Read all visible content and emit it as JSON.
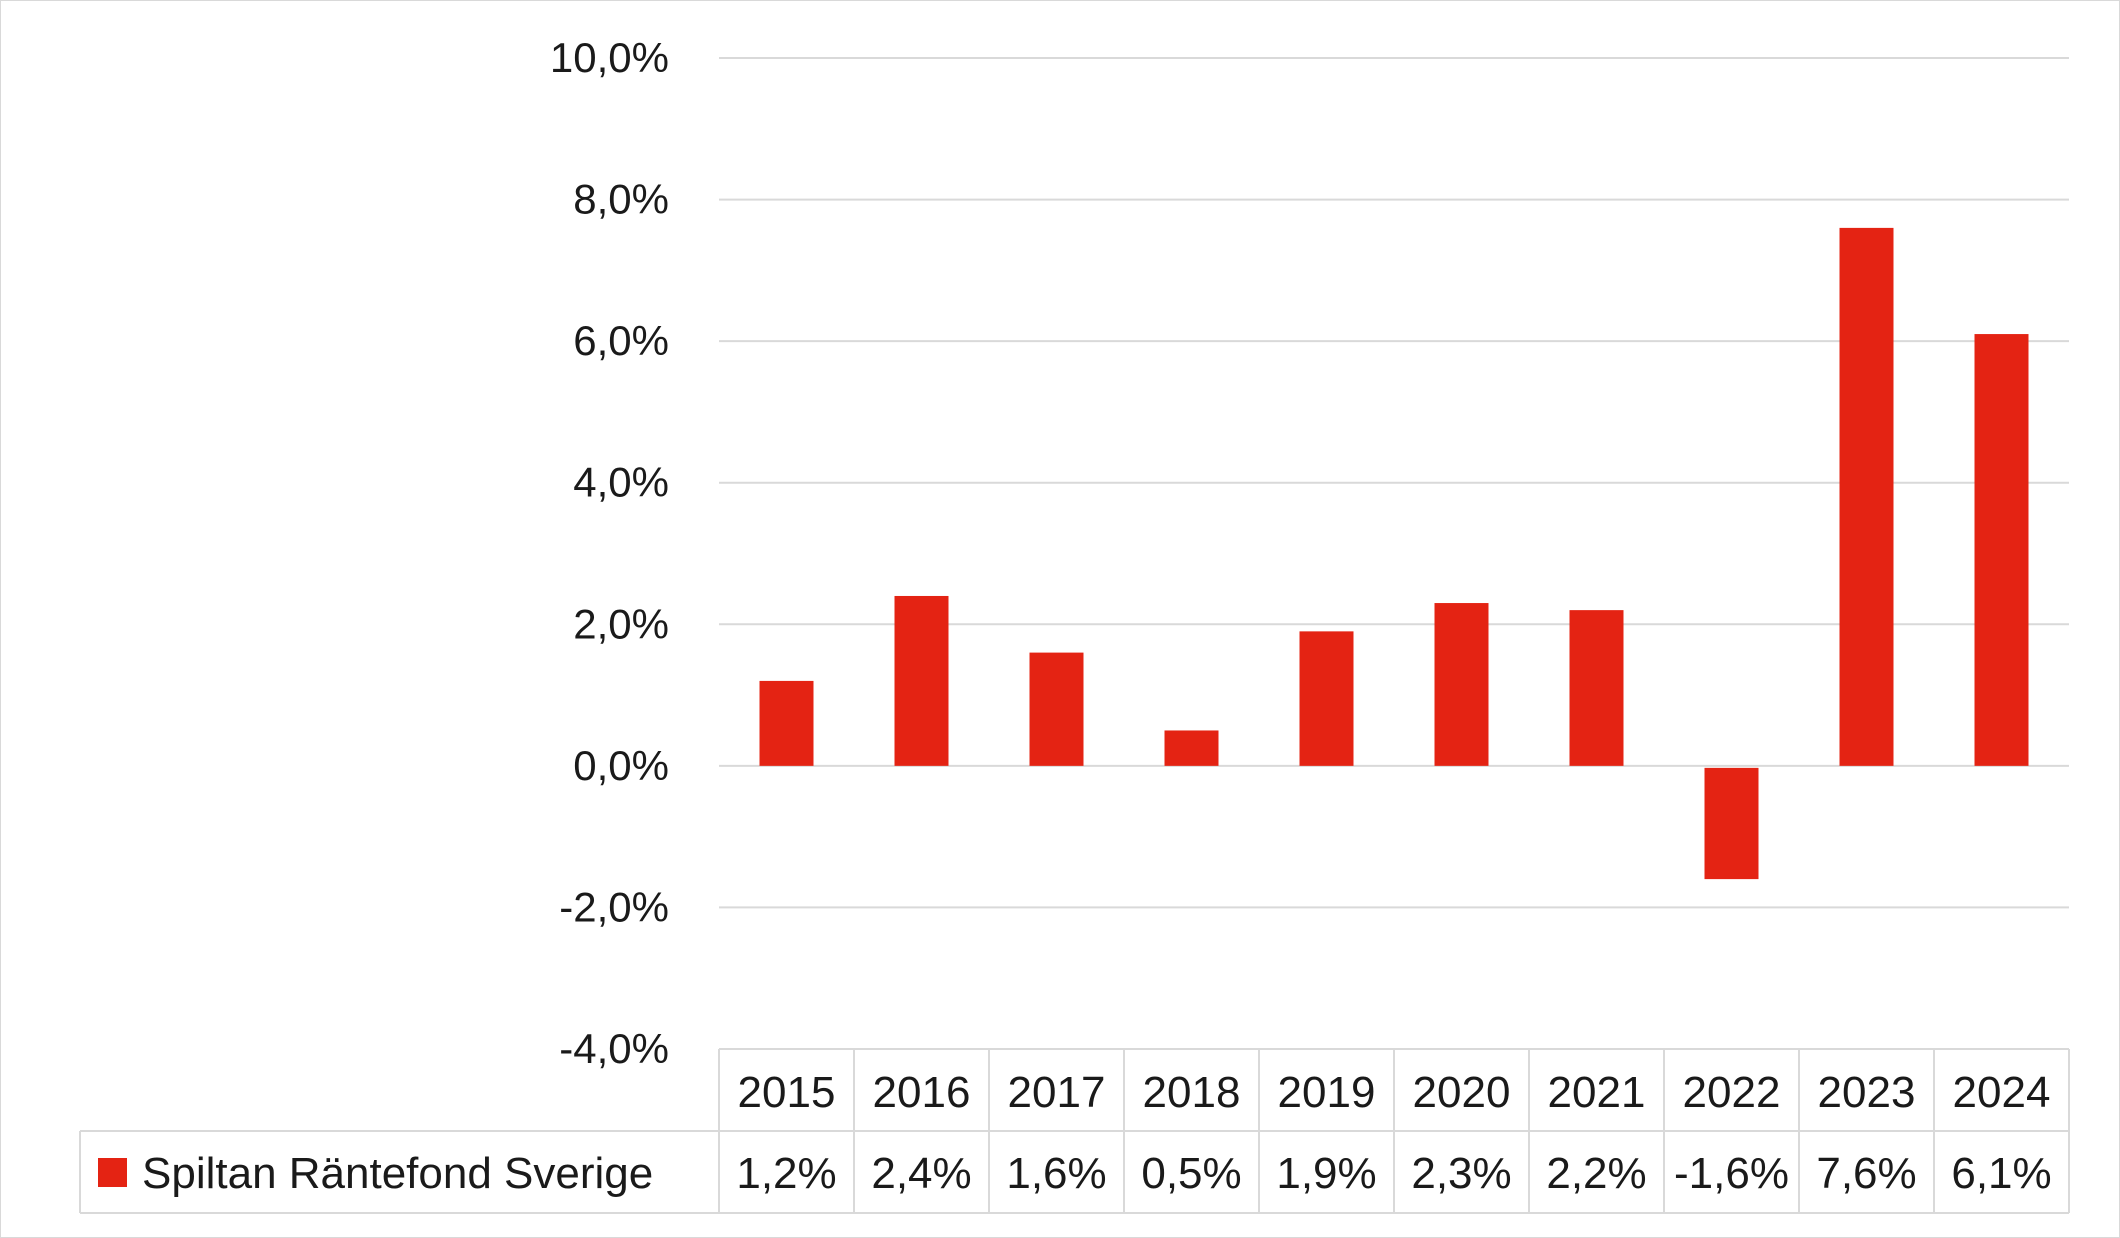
{
  "chart_data": {
    "type": "bar",
    "categories": [
      "2015",
      "2016",
      "2017",
      "2018",
      "2019",
      "2020",
      "2021",
      "2022",
      "2023",
      "2024"
    ],
    "series": [
      {
        "name": "Spiltan Räntefond Sverige",
        "values": [
          1.2,
          2.4,
          1.6,
          0.5,
          1.9,
          2.3,
          2.2,
          -1.6,
          7.6,
          6.1
        ],
        "value_labels": [
          "1,2%",
          "2,4%",
          "1,6%",
          "0,5%",
          "1,9%",
          "2,3%",
          "2,2%",
          "-1,6%",
          "7,6%",
          "6,1%"
        ],
        "color": "#e42313"
      }
    ],
    "ylim": [
      -4,
      10
    ],
    "yticks": [
      10,
      8,
      6,
      4,
      2,
      0,
      -2,
      -4
    ],
    "ytick_labels": [
      "10,0%",
      "8,0%",
      "6,0%",
      "4,0%",
      "2,0%",
      "0,0%",
      "-2,0%",
      "-4,0%"
    ],
    "grid": true,
    "legend": "data-table",
    "gridline_color": "#d9d9d9",
    "text_color": "#1a1a1a"
  }
}
